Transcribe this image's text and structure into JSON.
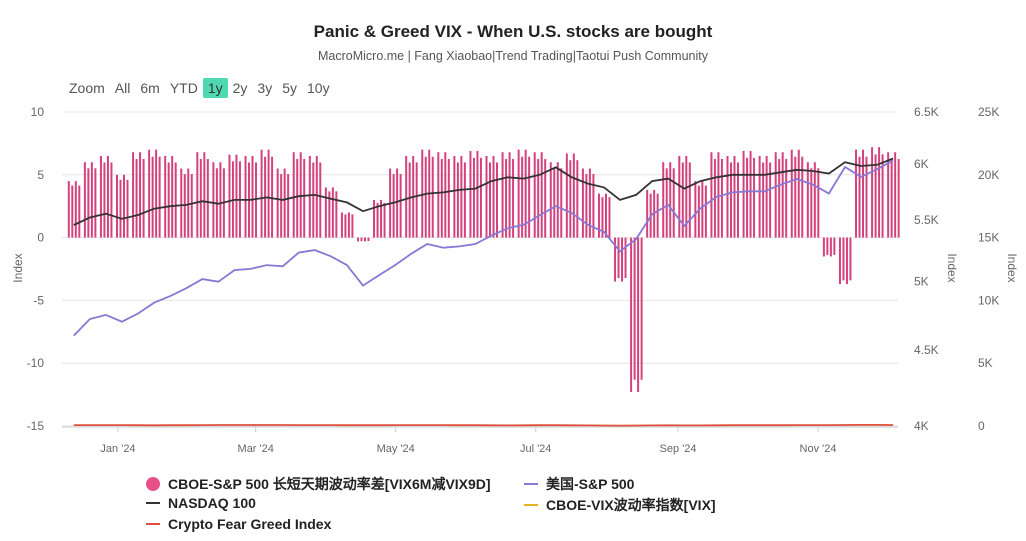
{
  "chart_data": {
    "type": "bar+line",
    "title": "Panic & Greed VIX - When U.S. stocks are bought",
    "subtitle": "MacroMicro.me | Fang Xiaobao|Trend Trading|Taotui Push Community",
    "range_selector": {
      "label": "Zoom",
      "options": [
        "All",
        "6m",
        "YTD",
        "1y",
        "2y",
        "3y",
        "5y",
        "10y"
      ],
      "selected": "1y"
    },
    "x_start": "2023-12-11",
    "x_step_days": 7,
    "x_ticks": [
      {
        "date": "2024-01-01",
        "label": "Jan '24"
      },
      {
        "date": "2024-03-01",
        "label": "Mar '24"
      },
      {
        "date": "2024-05-01",
        "label": "May '24"
      },
      {
        "date": "2024-07-01",
        "label": "Jul '24"
      },
      {
        "date": "2024-09-01",
        "label": "Sep '24"
      },
      {
        "date": "2024-11-01",
        "label": "Nov '24"
      }
    ],
    "axes": {
      "left": {
        "label": "Index",
        "ticks": [
          "10",
          "5",
          "0",
          "-5",
          "-10",
          "-15"
        ],
        "range": [
          -15,
          10
        ]
      },
      "middle": {
        "label": "Index",
        "ticks": [
          "6.5K",
          "6K",
          "5.5K",
          "5K",
          "4.5K",
          "4K"
        ],
        "range": [
          4000,
          6500
        ],
        "scale": "log"
      },
      "right": {
        "label": "Index",
        "ticks": [
          "25K",
          "20K",
          "15K",
          "10K",
          "5K",
          "0"
        ],
        "range": [
          0,
          25000
        ]
      }
    },
    "series": [
      {
        "name": "CBOE-S&P 500 长短天期波动率差[VIX6M减VIX9D]",
        "type": "bar",
        "axis": "left",
        "color": "#d4427e",
        "values": [
          4.5,
          6,
          6.5,
          5,
          6.8,
          7,
          6.5,
          5.5,
          6.8,
          6,
          6.6,
          6.5,
          7,
          5.5,
          6.8,
          6.5,
          4,
          2,
          -0.3,
          3,
          5.5,
          6.5,
          7,
          6.8,
          6.5,
          6.9,
          6.5,
          6.8,
          7,
          6.8,
          6,
          6.7,
          5.5,
          3.5,
          -3.5,
          -12.3,
          3.8,
          6,
          6.5,
          4.5,
          6.8,
          6.5,
          6.9,
          6.5,
          6.8,
          7,
          6,
          -1.5,
          -3.7,
          7,
          7.2,
          6.8
        ]
      },
      {
        "name": "美国-S&P 500",
        "type": "line",
        "axis": "middle",
        "color": "#8877d4",
        "values": [
          4600,
          4720,
          4750,
          4700,
          4760,
          4840,
          4890,
          4950,
          5020,
          5000,
          5090,
          5100,
          5130,
          5120,
          5230,
          5250,
          5200,
          5130,
          4970,
          5050,
          5130,
          5220,
          5300,
          5270,
          5280,
          5300,
          5370,
          5430,
          5460,
          5540,
          5620,
          5560,
          5460,
          5400,
          5240,
          5340,
          5550,
          5630,
          5450,
          5600,
          5700,
          5740,
          5750,
          5750,
          5810,
          5860,
          5810,
          5730,
          5970,
          5880,
          5950,
          6030
        ]
      },
      {
        "name": "NASDAQ 100",
        "type": "line",
        "axis": "right",
        "color": "#333333",
        "values": [
          16000,
          16600,
          16900,
          16500,
          16800,
          17300,
          17500,
          17600,
          17900,
          17700,
          18000,
          18000,
          18200,
          18000,
          18300,
          18400,
          18100,
          17800,
          17100,
          17500,
          17800,
          18200,
          18500,
          18600,
          18800,
          18900,
          19500,
          19800,
          19700,
          20000,
          20600,
          19800,
          19300,
          19000,
          18000,
          18400,
          19500,
          19700,
          18900,
          19500,
          19800,
          20000,
          20000,
          20000,
          20200,
          20400,
          20300,
          20100,
          21000,
          20700,
          20800,
          21300
        ]
      },
      {
        "name": "CBOE-VIX波动率指数[VIX]",
        "type": "line",
        "axis": "right",
        "color": "#e6b422",
        "values": []
      },
      {
        "name": "Crypto Fear Greed Index",
        "type": "line",
        "axis": "right",
        "color": "#e0503c",
        "values": [
          70,
          72,
          74,
          70,
          60,
          55,
          60,
          65,
          75,
          78,
          80,
          82,
          80,
          78,
          75,
          70,
          72,
          65,
          60,
          65,
          70,
          72,
          70,
          68,
          65,
          60,
          55,
          50,
          55,
          60,
          62,
          55,
          45,
          40,
          30,
          40,
          50,
          52,
          45,
          50,
          55,
          60,
          62,
          60,
          65,
          70,
          72,
          70,
          78,
          85,
          90,
          82
        ]
      }
    ]
  }
}
